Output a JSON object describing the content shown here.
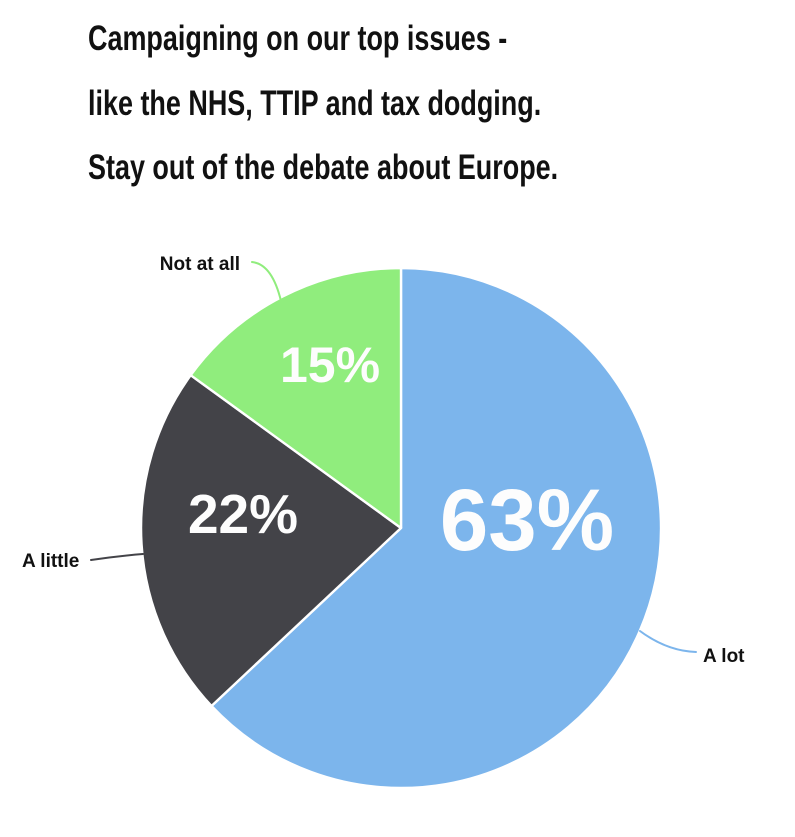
{
  "title": {
    "line1": "Campaigning on our top issues -",
    "line2": "like the NHS, TTIP and tax dodging.",
    "line3": "Stay out of the debate about Europe."
  },
  "chart_data": {
    "type": "pie",
    "title": "Campaigning on our top issues - like the NHS, TTIP and tax dodging. Stay out of the debate about Europe.",
    "units": "%",
    "start_angle_deg": 0,
    "direction": "clockwise",
    "legend": "none",
    "background_color": "#ffffff",
    "inside_label_color": "#ffffff",
    "outside_label_color": "#111111",
    "slices": [
      {
        "label": "A lot",
        "value": 63,
        "pct_label": "63%",
        "color": "#7cb5ec"
      },
      {
        "label": "A little",
        "value": 22,
        "pct_label": "22%",
        "color": "#434348"
      },
      {
        "label": "Not at all",
        "value": 15,
        "pct_label": "15%",
        "color": "#90ed7d"
      }
    ],
    "layout": {
      "pie_center": [
        401,
        528
      ],
      "pie_radius": 260
    }
  }
}
